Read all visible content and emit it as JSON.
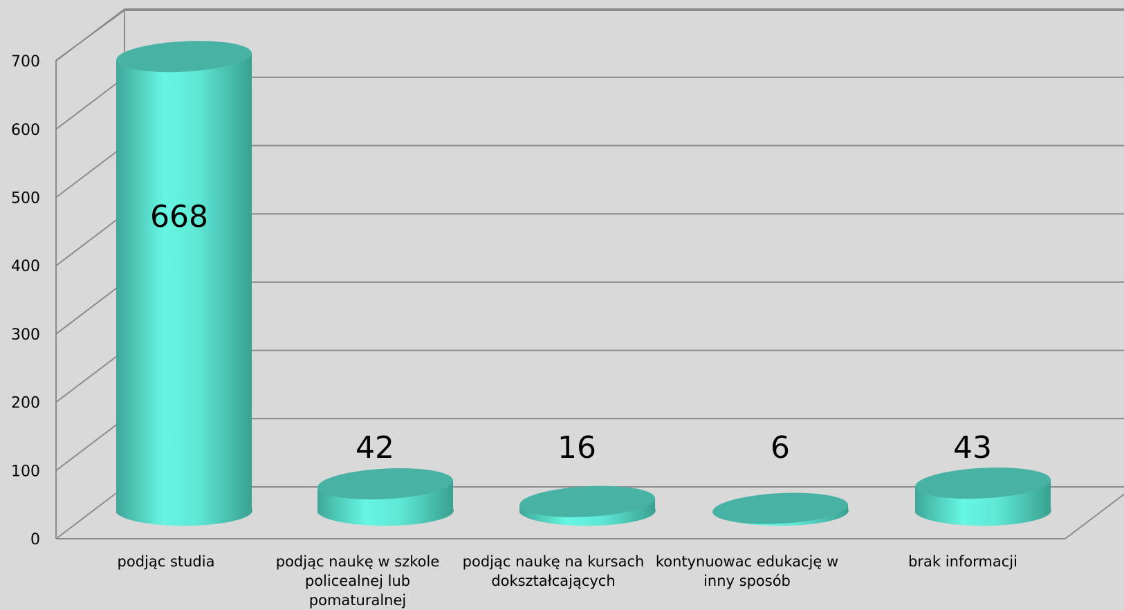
{
  "chart_data": {
    "type": "bar",
    "style": "3d-cylinder",
    "categories": [
      "podjąc studia",
      "podjąc naukę w szkole policealnej lub pomaturalnej",
      "podjąc naukę na kursach dokształcających",
      "kontynuowac edukację w inny sposób",
      "brak informacji"
    ],
    "values": [
      668,
      42,
      16,
      6,
      43
    ],
    "data_labels": [
      "668",
      "42",
      "16",
      "6",
      "43"
    ],
    "ylim": [
      0,
      700
    ],
    "yticks": [
      "0",
      "100",
      "200",
      "300",
      "400",
      "500",
      "600",
      "700"
    ],
    "grid": true,
    "colors": {
      "background": "#d9d9d9",
      "bar_light": "#66f6e3",
      "bar_dark": "#3fa89a",
      "bar_top": "#48b3a4",
      "grid": "#8c8c8c"
    }
  }
}
